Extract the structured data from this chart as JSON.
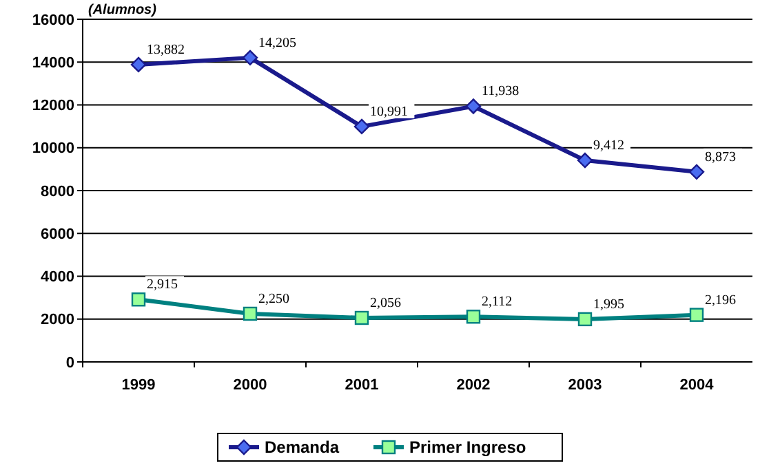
{
  "chart_data": {
    "type": "line",
    "ylabel": "(Alumnos)",
    "categories": [
      "1999",
      "2000",
      "2001",
      "2002",
      "2003",
      "2004"
    ],
    "series": [
      {
        "name": "Demanda",
        "color": "#1a1a8c",
        "marker": "diamond",
        "values": [
          13882,
          14205,
          10991,
          11938,
          9412,
          8873
        ],
        "value_labels": [
          "13,882",
          "14,205",
          "10,991",
          "11,938",
          "9,412",
          "8,873"
        ]
      },
      {
        "name": "Primer Ingreso",
        "color": "#008080",
        "marker": "square",
        "values": [
          2915,
          2250,
          2056,
          2112,
          1995,
          2196
        ],
        "value_labels": [
          "2,915",
          "2,250",
          "2,056",
          "2,112",
          "1,995",
          "2,196"
        ]
      }
    ],
    "ylim": [
      0,
      16000
    ],
    "yticks": [
      0,
      2000,
      4000,
      6000,
      8000,
      10000,
      12000,
      14000,
      16000
    ],
    "grid": "y",
    "legend": "bottom"
  }
}
